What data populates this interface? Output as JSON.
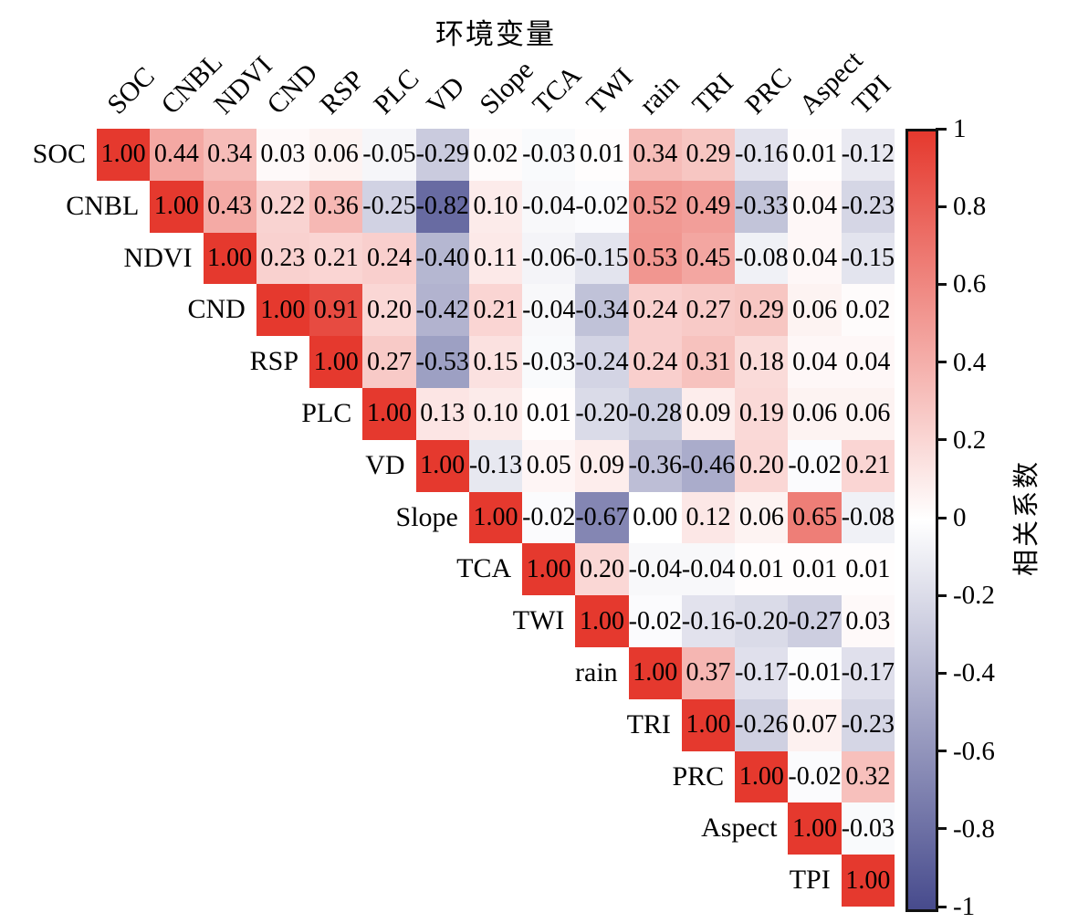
{
  "title": "环境变量",
  "colorbar": {
    "label": "相关系数",
    "ticks": [
      "1",
      "0.8",
      "0.6",
      "0.4",
      "0.2",
      "0",
      "-0.2",
      "-0.4",
      "-0.6",
      "-0.8",
      "-1"
    ],
    "min": -1,
    "max": 1,
    "color_positive": "#e5392e",
    "color_zero": "#ffffff",
    "color_negative": "#474b8d"
  },
  "chart_data": {
    "type": "heatmap",
    "title": "环境变量",
    "colorbar_label": "相关系数",
    "legend_position": "right",
    "vmin": -1,
    "vmax": 1,
    "triangle": "upper",
    "labels": [
      "SOC",
      "CNBL",
      "NDVI",
      "CND",
      "RSP",
      "PLC",
      "VD",
      "Slope",
      "TCA",
      "TWI",
      "rain",
      "TRI",
      "PRC",
      "Aspect",
      "TPI"
    ],
    "matrix": [
      [
        "1.00",
        "0.44",
        "0.34",
        "0.03",
        "0.06",
        "-0.05",
        "-0.29",
        "0.02",
        "-0.03",
        "0.01",
        "0.34",
        "0.29",
        "-0.16",
        "0.01",
        "-0.12"
      ],
      [
        "1.00",
        "0.43",
        "0.22",
        "0.36",
        "-0.25",
        "-0.82",
        "0.10",
        "-0.04",
        "-0.02",
        "0.52",
        "0.49",
        "-0.33",
        "0.04",
        "-0.23"
      ],
      [
        "1.00",
        "0.23",
        "0.21",
        "0.24",
        "-0.40",
        "0.11",
        "-0.06",
        "-0.15",
        "0.53",
        "0.45",
        "-0.08",
        "0.04",
        "-0.15"
      ],
      [
        "1.00",
        "0.91",
        "0.20",
        "-0.42",
        "0.21",
        "-0.04",
        "-0.34",
        "0.24",
        "0.27",
        "0.29",
        "0.06",
        "0.02"
      ],
      [
        "1.00",
        "0.27",
        "-0.53",
        "0.15",
        "-0.03",
        "-0.24",
        "0.24",
        "0.31",
        "0.18",
        "0.04",
        "0.04"
      ],
      [
        "1.00",
        "0.13",
        "0.10",
        "0.01",
        "-0.20",
        "-0.28",
        "0.09",
        "0.19",
        "0.06",
        "0.06"
      ],
      [
        "1.00",
        "-0.13",
        "0.05",
        "0.09",
        "-0.36",
        "-0.46",
        "0.20",
        "-0.02",
        "0.21"
      ],
      [
        "1.00",
        "-0.02",
        "-0.67",
        "0.00",
        "0.12",
        "0.06",
        "0.65",
        "-0.08"
      ],
      [
        "1.00",
        "0.20",
        "-0.04",
        "-0.04",
        "0.01",
        "0.01",
        "0.01"
      ],
      [
        "1.00",
        "-0.02",
        "-0.16",
        "-0.20",
        "-0.27",
        "0.03"
      ],
      [
        "1.00",
        "0.37",
        "-0.17",
        "-0.01",
        "-0.17"
      ],
      [
        "1.00",
        "-0.26",
        "0.07",
        "-0.23"
      ],
      [
        "1.00",
        "-0.02",
        "0.32"
      ],
      [
        "1.00",
        "-0.03"
      ],
      [
        "1.00"
      ]
    ]
  }
}
